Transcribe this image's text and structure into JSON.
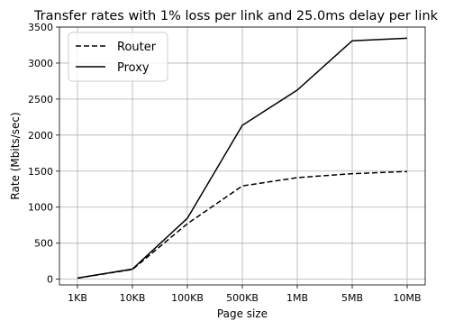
{
  "chart_data": {
    "type": "line",
    "title": "Transfer rates with 1% loss per link and 25.0ms delay per link",
    "xlabel": "Page size",
    "ylabel": "Rate (Mbits/sec)",
    "categories": [
      "1KB",
      "10KB",
      "100KB",
      "500KB",
      "1MB",
      "5MB",
      "10MB"
    ],
    "ylim": [
      -80,
      3500
    ],
    "yticks": [
      0,
      500,
      1000,
      1500,
      2000,
      2500,
      3000,
      3500
    ],
    "grid": true,
    "legend_position": "top-left",
    "series": [
      {
        "name": "Router",
        "style": "dashed",
        "color": "#000000",
        "values": [
          15,
          135,
          770,
          1295,
          1410,
          1465,
          1495
        ]
      },
      {
        "name": "Proxy",
        "style": "solid",
        "color": "#000000",
        "values": [
          15,
          140,
          845,
          2135,
          2625,
          3310,
          3345
        ]
      }
    ]
  }
}
